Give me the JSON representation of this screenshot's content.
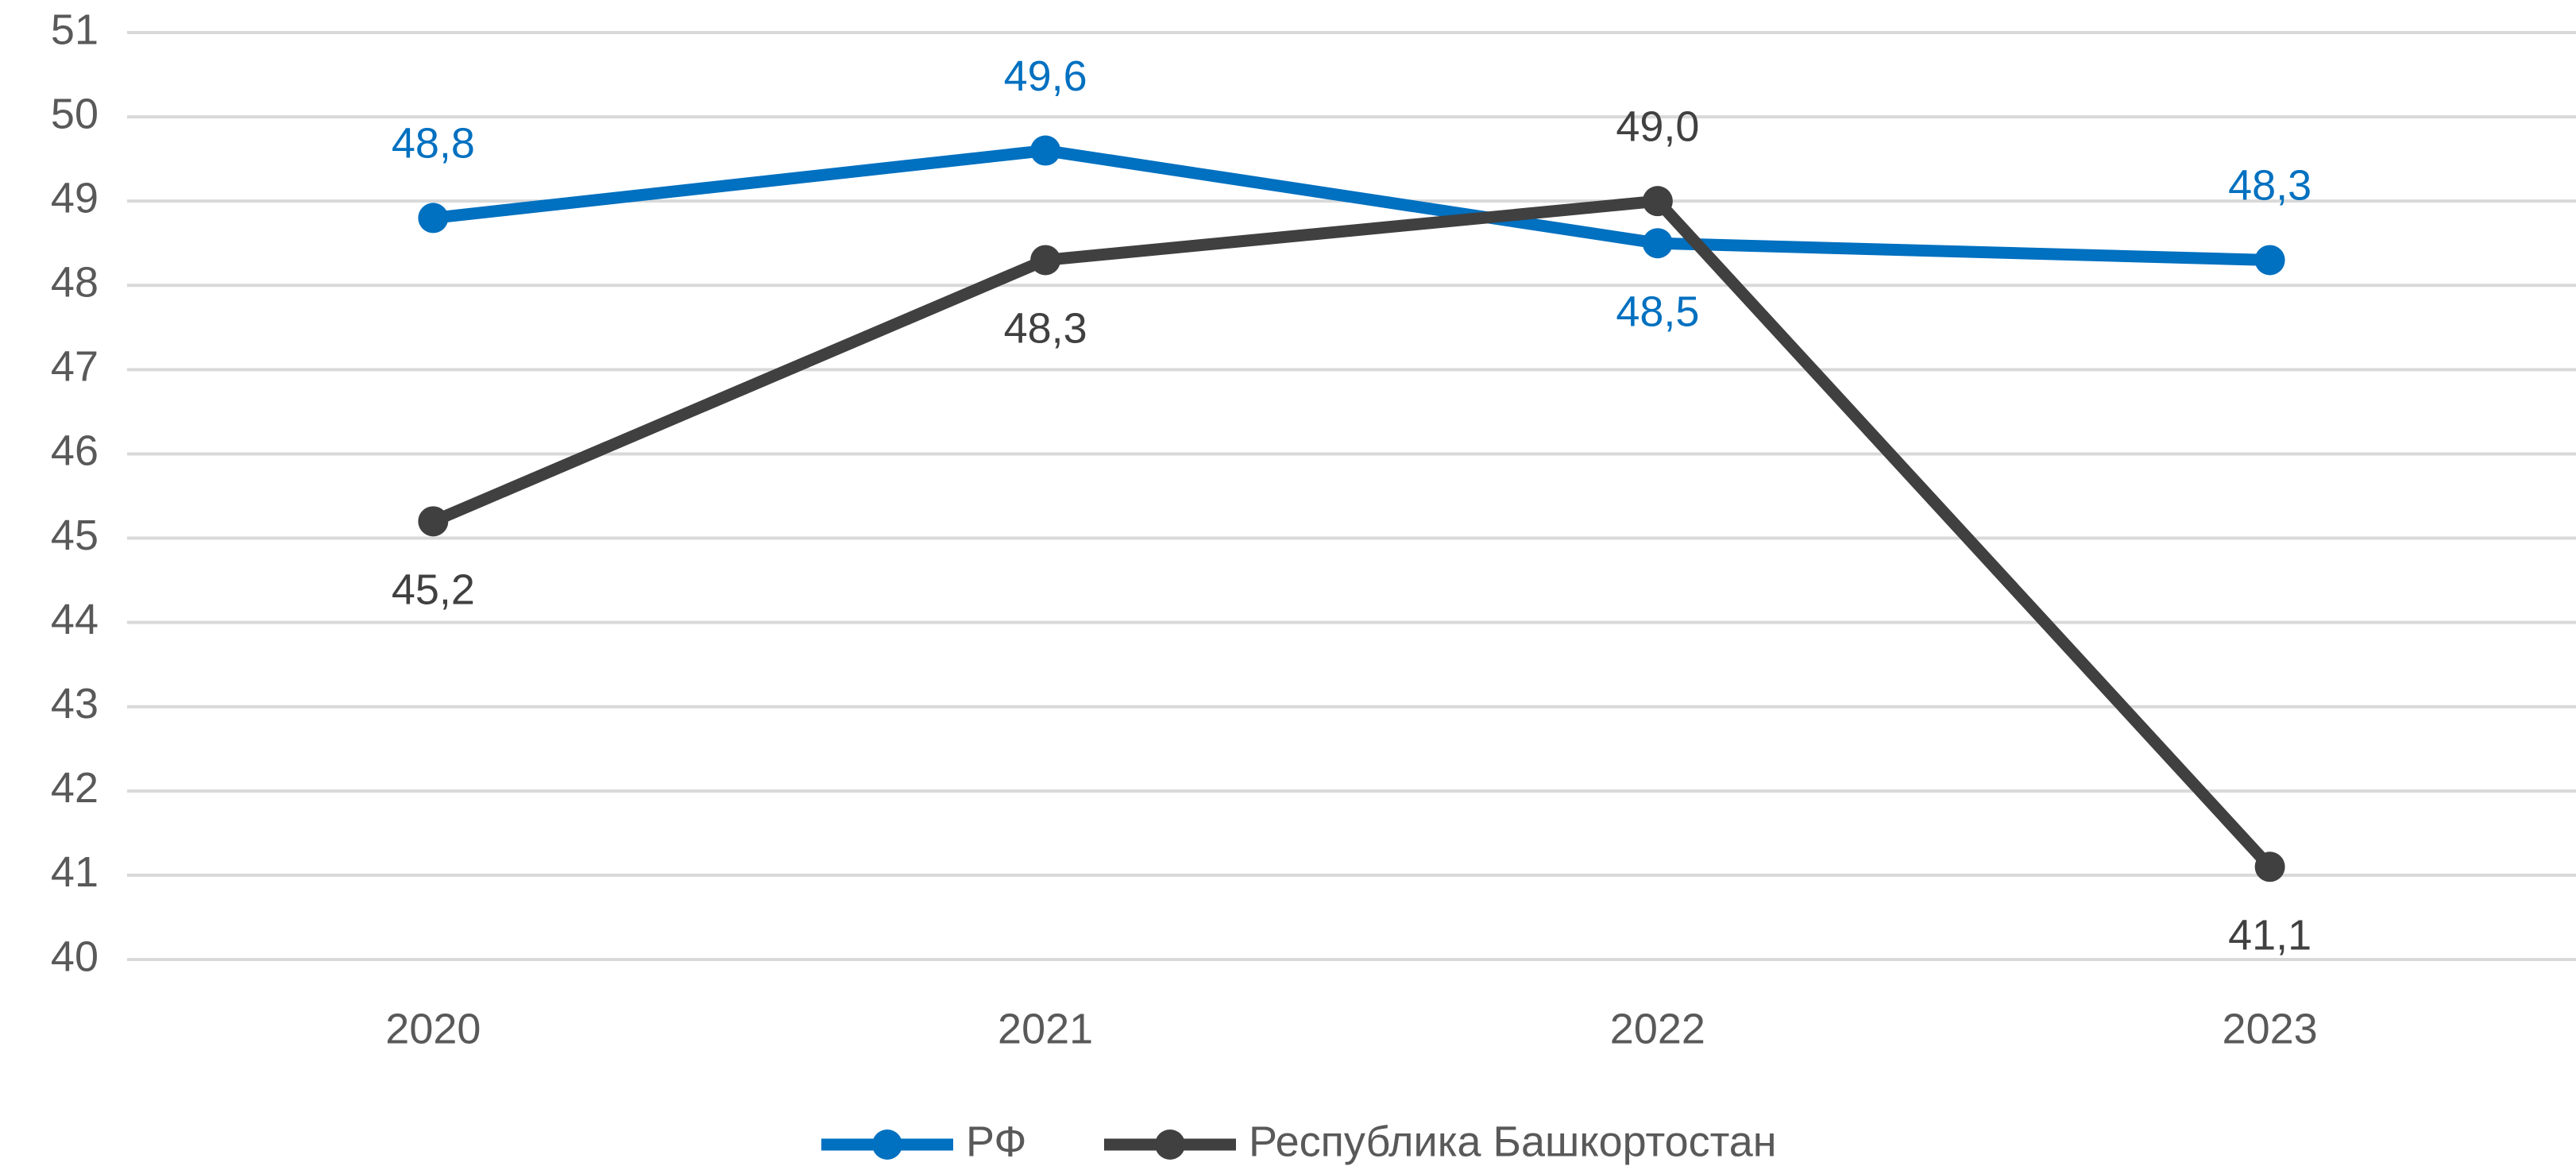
{
  "chart_data": {
    "type": "line",
    "categories": [
      "2020",
      "2021",
      "2022",
      "2023"
    ],
    "series": [
      {
        "name": "РФ",
        "color": "#0070c0",
        "values": [
          48.8,
          49.6,
          48.5,
          48.3
        ],
        "value_labels": [
          "48,8",
          "49,6",
          "48,5",
          "48,3"
        ]
      },
      {
        "name": "Республика Башкортостан",
        "color": "#404040",
        "values": [
          45.2,
          48.3,
          49.0,
          41.1
        ],
        "value_labels": [
          "45,2",
          "48,3",
          "49,0",
          "41,1"
        ]
      }
    ],
    "ylim": [
      40,
      51
    ],
    "yticks": [
      40,
      41,
      42,
      43,
      44,
      45,
      46,
      47,
      48,
      49,
      50,
      51
    ],
    "grid": true,
    "legend": "bottom"
  }
}
